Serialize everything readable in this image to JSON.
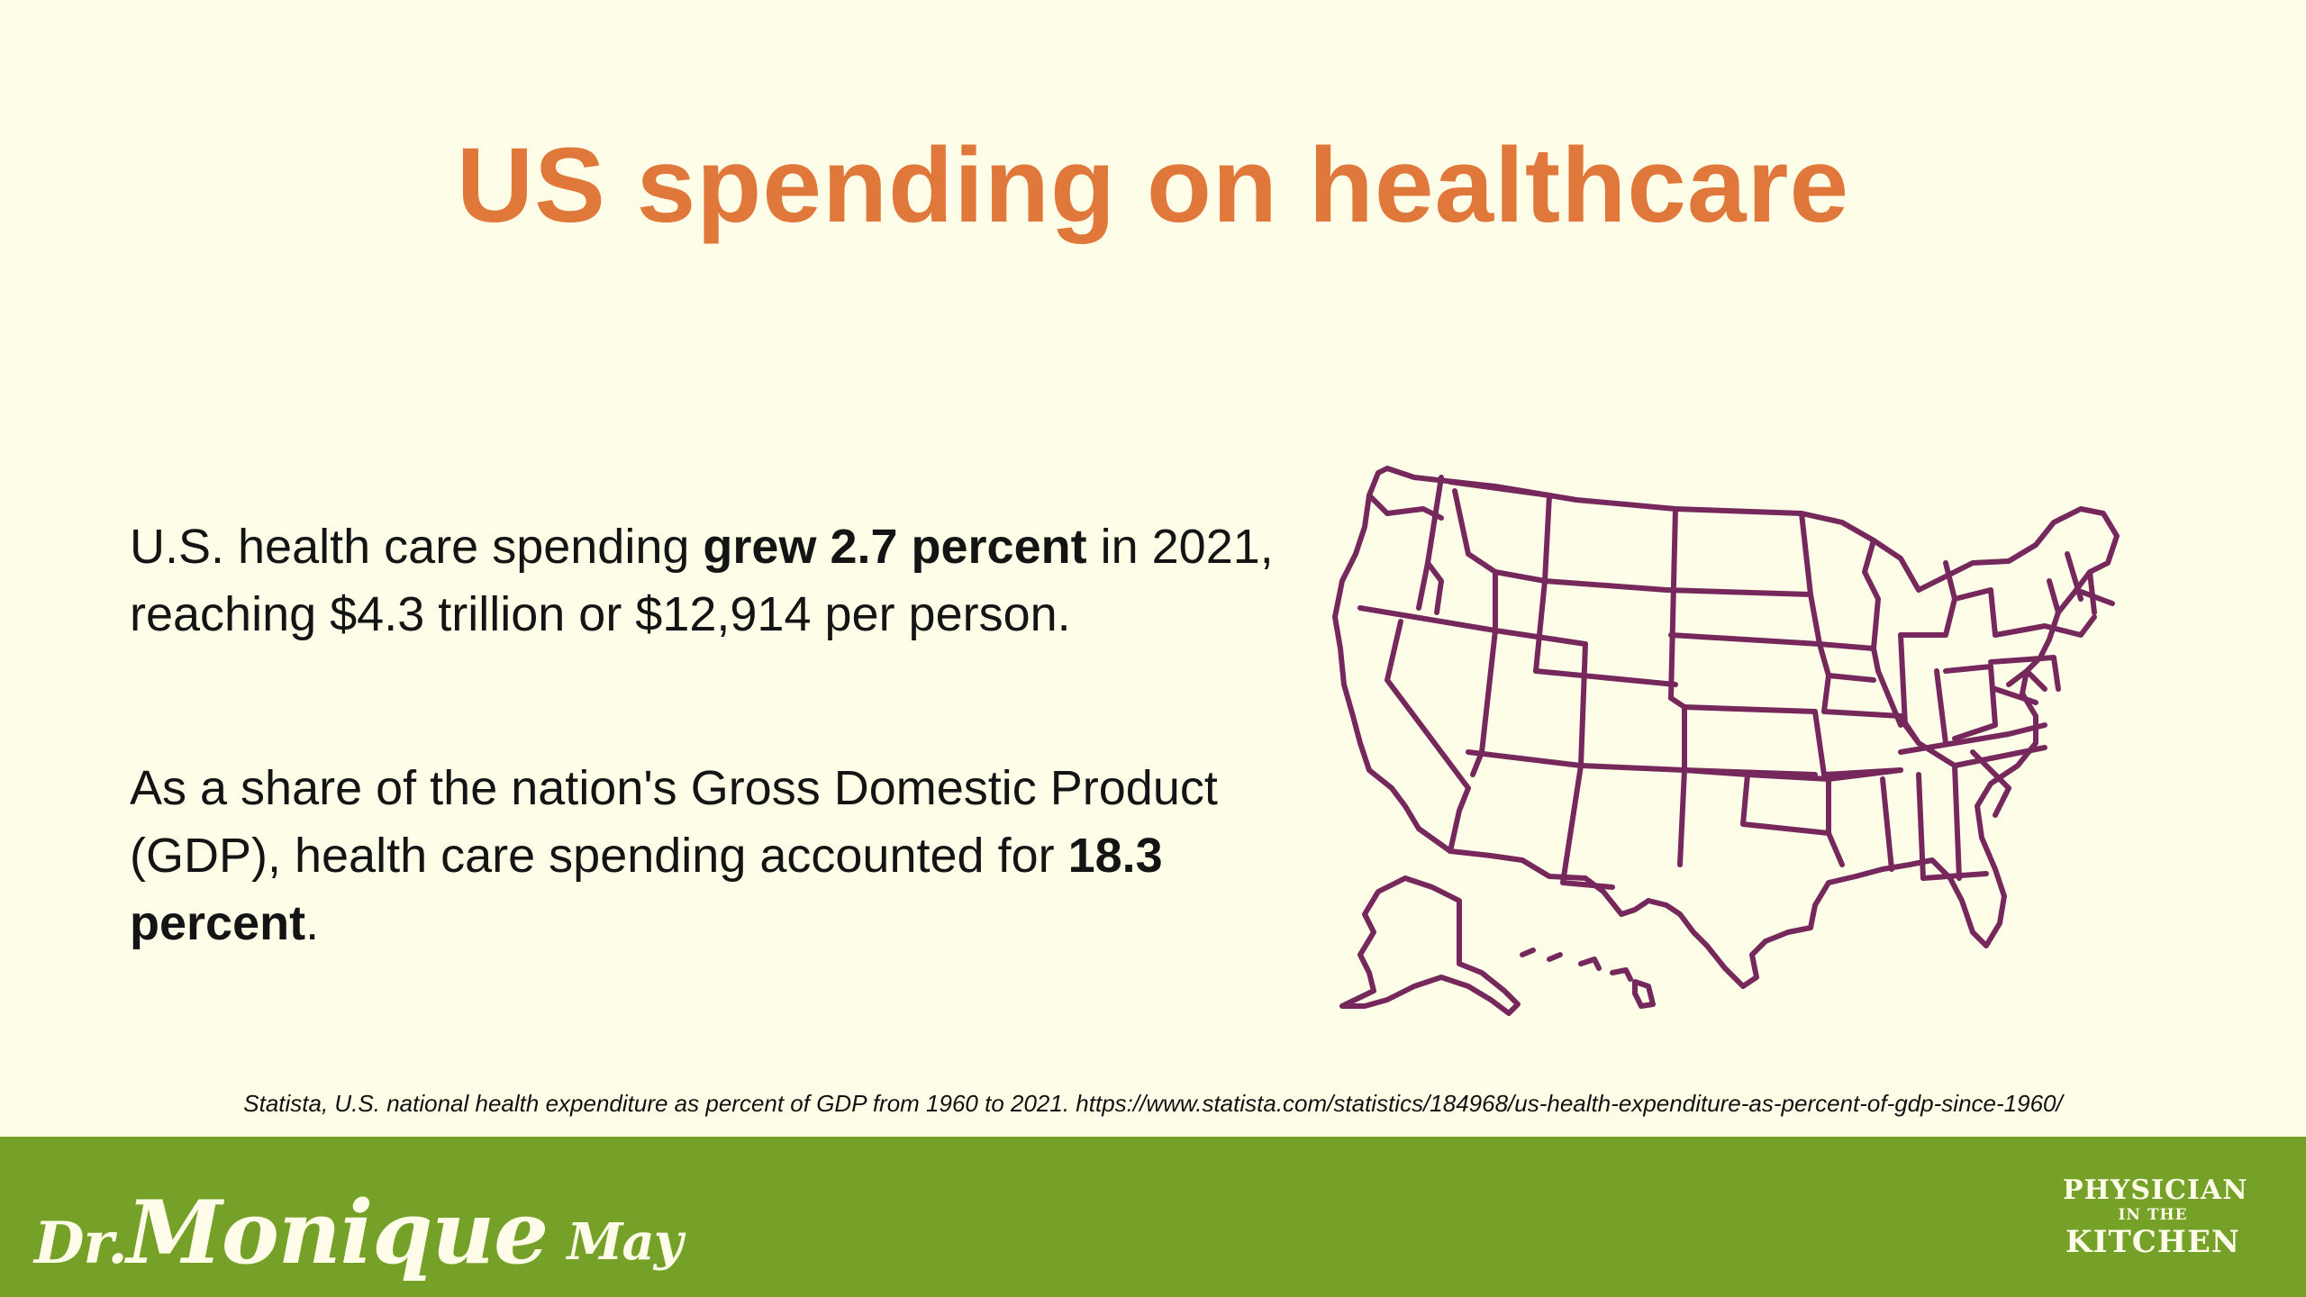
{
  "title": "US spending on healthcare",
  "paragraph1": {
    "pre": "U.S. health care spending ",
    "bold": "grew 2.7 percent",
    "post": " in 2021, reaching $4.3 trillion or $12,914 per person."
  },
  "paragraph2": {
    "pre": "As a share of the nation's Gross Domestic Product (GDP), health care spending accounted for ",
    "bold": "18.3 percent",
    "post": "."
  },
  "citation": "Statista, U.S. national health expenditure as percent of GDP from 1960 to 2021. https://www.statista.com/statistics/184968/us-health-expenditure-as-percent-of-gdp-since-1960/",
  "footer": {
    "logo_left_prefix": "Dr.",
    "logo_left_name1": "Monique",
    "logo_left_name2": "May",
    "logo_right_line1": "PHYSICIAN",
    "logo_right_line2": "IN THE",
    "logo_right_line3": "KITCHEN"
  },
  "colors": {
    "background": "#fefee8",
    "title": "#df783a",
    "map_stroke": "#76285d",
    "footer": "#75a128"
  },
  "icons": {
    "map": "us-states-map-icon"
  }
}
